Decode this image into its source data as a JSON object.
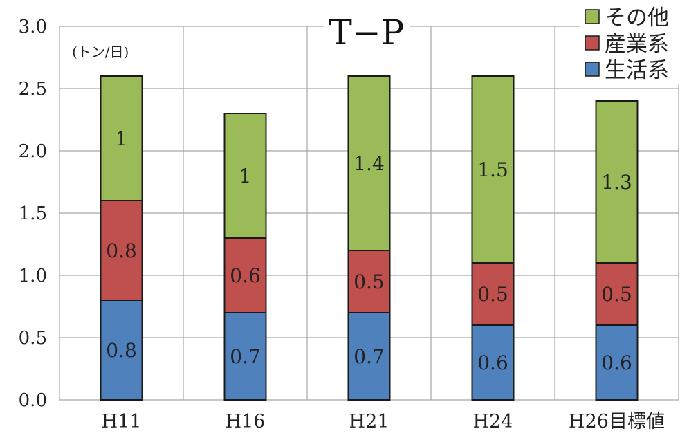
{
  "chart_data": {
    "type": "bar",
    "stacked": true,
    "title": "T−P",
    "unit_label": "(トン/日)",
    "categories": [
      "H11",
      "H16",
      "H21",
      "H24",
      "H26目標値"
    ],
    "ylim": [
      0,
      3.0
    ],
    "yticks": [
      "0.0",
      "0.5",
      "1.0",
      "1.5",
      "2.0",
      "2.5",
      "3.0"
    ],
    "grid": true,
    "legend_position": "top-right",
    "series": [
      {
        "name": "生活系",
        "color": "#4f81bd",
        "values": [
          0.8,
          0.7,
          0.7,
          0.6,
          0.6
        ],
        "labels": [
          "0.8",
          "0.7",
          "0.7",
          "0.6",
          "0.6"
        ]
      },
      {
        "name": "産業系",
        "color": "#c0504d",
        "values": [
          0.8,
          0.6,
          0.5,
          0.5,
          0.5
        ],
        "labels": [
          "0.8",
          "0.6",
          "0.5",
          "0.5",
          "0.5"
        ]
      },
      {
        "name": "その他",
        "color": "#9bbb59",
        "values": [
          1.0,
          1.0,
          1.4,
          1.5,
          1.3
        ],
        "labels": [
          "1",
          "1",
          "1.4",
          "1.5",
          "1.3"
        ]
      }
    ],
    "legend_order": [
      2,
      1,
      0
    ]
  }
}
